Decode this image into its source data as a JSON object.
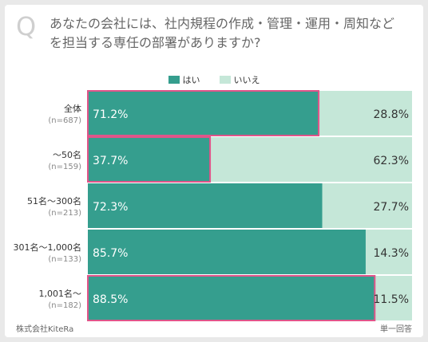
{
  "question": {
    "marker": "Q",
    "text": "あなたの会社には、社内規程の作成・管理・運用・周知などを担当する専任の部署がありますか?"
  },
  "colors": {
    "yes": "#359e8e",
    "no": "#c5e7d8",
    "highlight": "#e0558a",
    "yes_text": "#ffffff",
    "no_text": "#333333"
  },
  "chart_data": {
    "type": "bar",
    "orientation": "horizontal-stacked-100",
    "legend": [
      "はい",
      "いいえ"
    ],
    "legend_position": "top-center",
    "categories": [
      {
        "label": "全体",
        "n": "(n=687)",
        "highlight": true
      },
      {
        "label": "〜50名",
        "n": "(n=159)",
        "highlight": true
      },
      {
        "label": "51名〜300名",
        "n": "(n=213)",
        "highlight": false
      },
      {
        "label": "301名〜1,000名",
        "n": "(n=133)",
        "highlight": false
      },
      {
        "label": "1,001名〜",
        "n": "(n=182)",
        "highlight": true
      }
    ],
    "series": [
      {
        "name": "はい",
        "values": [
          71.2,
          37.7,
          72.3,
          85.7,
          88.5
        ]
      },
      {
        "name": "いいえ",
        "values": [
          28.8,
          62.3,
          27.7,
          14.3,
          11.5
        ]
      }
    ],
    "value_labels": {
      "はい": [
        "71.2%",
        "37.7%",
        "72.3%",
        "85.7%",
        "88.5%"
      ],
      "いいえ": [
        "28.8%",
        "62.3%",
        "27.7%",
        "14.3%",
        "11.5%"
      ]
    }
  },
  "footer": {
    "source": "株式会社KiteRa",
    "note": "単一回答"
  }
}
